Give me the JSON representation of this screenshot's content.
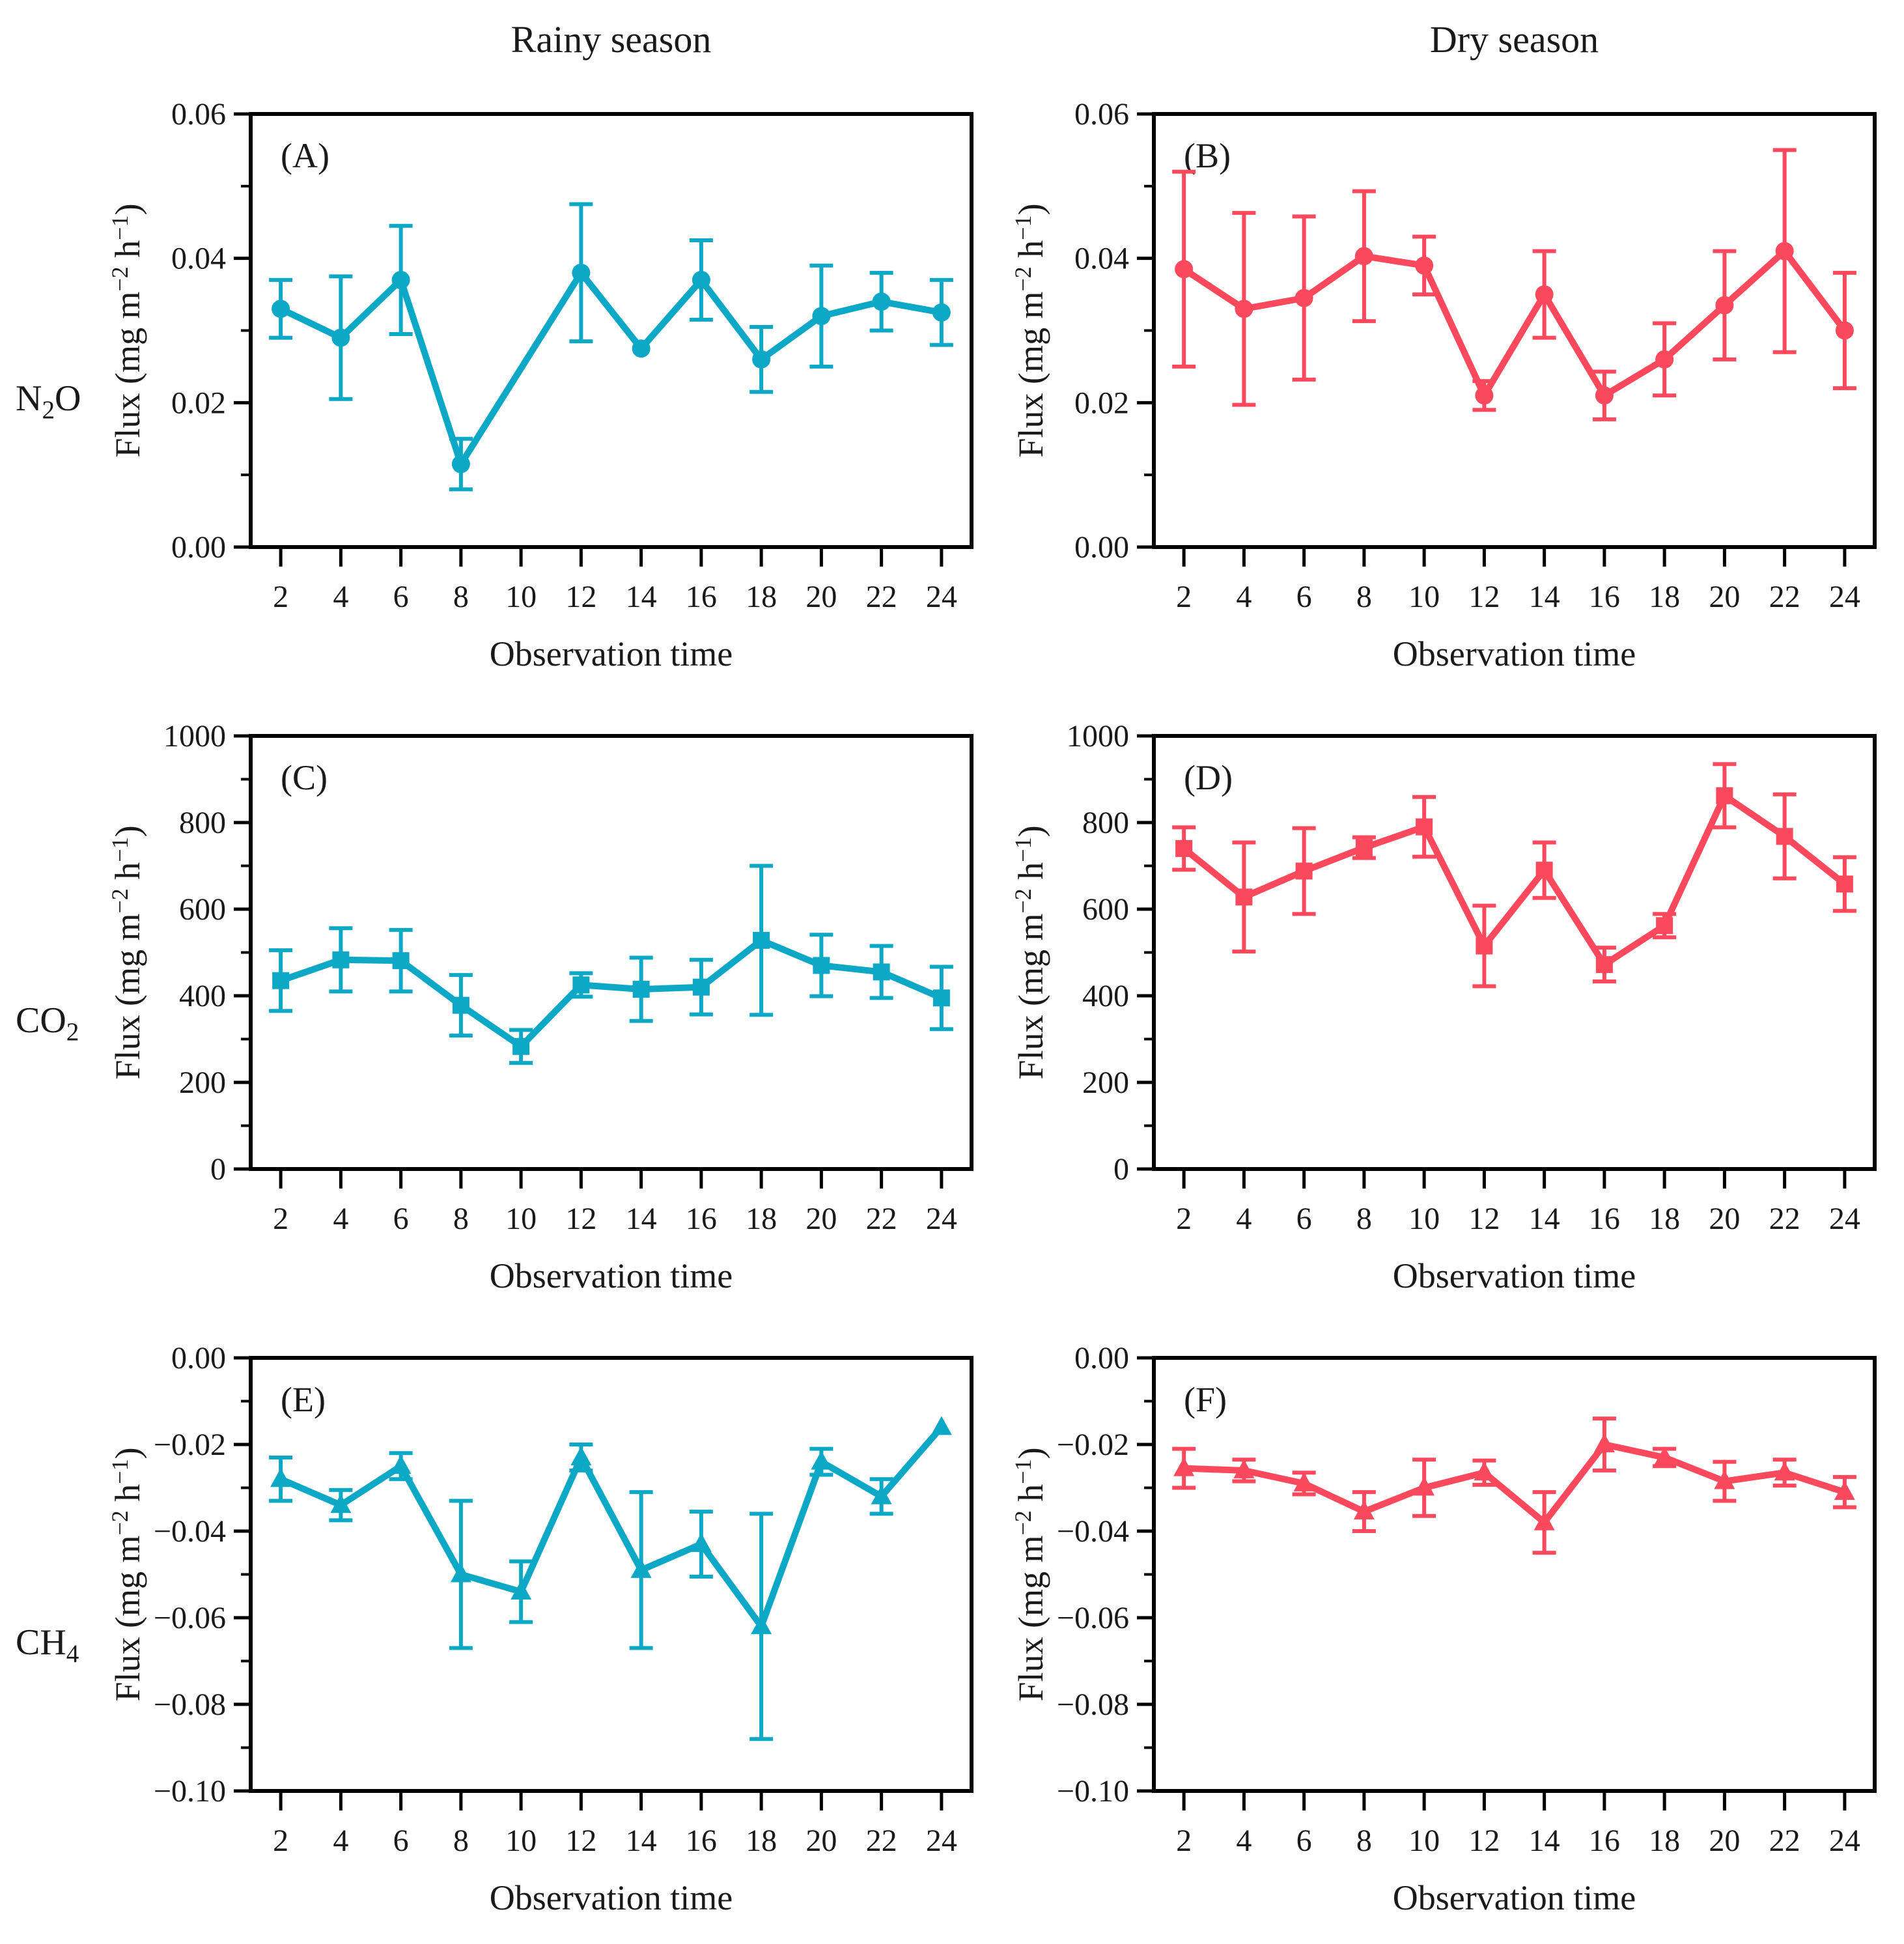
{
  "page": {
    "column_titles": [
      {
        "label": "Rainy season"
      },
      {
        "label": "Dry season"
      }
    ],
    "row_labels": [
      {
        "pre": "N",
        "sub": "2",
        "post": "O"
      },
      {
        "pre": "CO",
        "sub": "2",
        "post": ""
      },
      {
        "pre": "CH",
        "sub": "4",
        "post": ""
      }
    ]
  },
  "colors": {
    "rainy": "#0DA8C6",
    "dry": "#FA495C",
    "axis": "#000000",
    "text": "#1a1a1a"
  },
  "chart_data": [
    {
      "type": "line",
      "panel_label": "(A)",
      "gas": "N2O",
      "season": "Rainy season",
      "marker": "circle",
      "color": "#0DA8C6",
      "xlabel": "Observation time",
      "ylabel": "Flux (mg m^{−2} h^{−1})",
      "xlim": [
        1,
        25
      ],
      "xticks": [
        2,
        4,
        6,
        8,
        10,
        12,
        14,
        16,
        18,
        20,
        22,
        24
      ],
      "ylim": [
        0,
        0.06
      ],
      "yticks": [
        0,
        0.02,
        0.04,
        0.06
      ],
      "y_decimals": 2,
      "x": [
        2,
        4,
        6,
        8,
        12,
        14,
        16,
        18,
        20,
        22,
        24
      ],
      "y": [
        0.033,
        0.029,
        0.037,
        0.0115,
        0.038,
        0.0275,
        0.037,
        0.026,
        0.032,
        0.034,
        0.0325
      ],
      "err": [
        0.004,
        0.0085,
        0.0075,
        0.0035,
        0.0095,
        0,
        0.0055,
        0.0045,
        0.007,
        0.004,
        0.0045
      ]
    },
    {
      "type": "line",
      "panel_label": "(B)",
      "gas": "N2O",
      "season": "Dry season",
      "marker": "circle",
      "color": "#FA495C",
      "xlabel": "Observation time",
      "ylabel": "Flux (mg m^{−2} h^{−1})",
      "xlim": [
        1,
        25
      ],
      "xticks": [
        2,
        4,
        6,
        8,
        10,
        12,
        14,
        16,
        18,
        20,
        22,
        24
      ],
      "ylim": [
        0,
        0.06
      ],
      "yticks": [
        0,
        0.02,
        0.04,
        0.06
      ],
      "y_decimals": 2,
      "x": [
        2,
        4,
        6,
        8,
        10,
        12,
        14,
        16,
        18,
        20,
        22,
        24
      ],
      "y": [
        0.0385,
        0.033,
        0.0345,
        0.0403,
        0.039,
        0.021,
        0.035,
        0.021,
        0.026,
        0.0335,
        0.041,
        0.03
      ],
      "err": [
        0.0135,
        0.0133,
        0.0113,
        0.009,
        0.004,
        0.002,
        0.006,
        0.0033,
        0.005,
        0.0075,
        0.014,
        0.008
      ]
    },
    {
      "type": "line",
      "panel_label": "(C)",
      "gas": "CO2",
      "season": "Rainy season",
      "marker": "square",
      "color": "#0DA8C6",
      "xlabel": "Observation time",
      "ylabel": "Flux (mg m^{−2} h^{−1})",
      "xlim": [
        1,
        25
      ],
      "xticks": [
        2,
        4,
        6,
        8,
        10,
        12,
        14,
        16,
        18,
        20,
        22,
        24
      ],
      "ylim": [
        0,
        1000
      ],
      "yticks": [
        0,
        200,
        400,
        600,
        800,
        1000
      ],
      "y_decimals": 0,
      "x": [
        2,
        4,
        6,
        8,
        10,
        12,
        14,
        16,
        18,
        20,
        22,
        24
      ],
      "y": [
        435,
        483,
        481,
        378,
        283,
        425,
        415,
        420,
        528,
        470,
        455,
        395
      ],
      "err": [
        70,
        73,
        71,
        70,
        38,
        27,
        73,
        63,
        172,
        71,
        60,
        72
      ]
    },
    {
      "type": "line",
      "panel_label": "(D)",
      "gas": "CO2",
      "season": "Dry season",
      "marker": "square",
      "color": "#FA495C",
      "xlabel": "Observation time",
      "ylabel": "Flux (mg m^{−2} h^{−1})",
      "xlim": [
        1,
        25
      ],
      "xticks": [
        2,
        4,
        6,
        8,
        10,
        12,
        14,
        16,
        18,
        20,
        22,
        24
      ],
      "ylim": [
        0,
        1000
      ],
      "yticks": [
        0,
        200,
        400,
        600,
        800,
        1000
      ],
      "y_decimals": 0,
      "x": [
        2,
        4,
        6,
        8,
        10,
        12,
        14,
        16,
        18,
        20,
        22,
        24
      ],
      "y": [
        740,
        628,
        688,
        742,
        790,
        515,
        690,
        472,
        562,
        862,
        768,
        658
      ],
      "err": [
        49,
        126,
        99,
        24,
        69,
        93,
        64,
        39,
        27,
        73,
        97,
        62
      ]
    },
    {
      "type": "line",
      "panel_label": "(E)",
      "gas": "CH4",
      "season": "Rainy season",
      "marker": "triangle",
      "color": "#0DA8C6",
      "xlabel": "Observation time",
      "ylabel": "Flux (mg m^{−2} h^{−1})",
      "xlim": [
        1,
        25
      ],
      "xticks": [
        2,
        4,
        6,
        8,
        10,
        12,
        14,
        16,
        18,
        20,
        22,
        24
      ],
      "ylim": [
        -0.1,
        0
      ],
      "yticks": [
        -0.1,
        -0.08,
        -0.06,
        -0.04,
        -0.02,
        0
      ],
      "y_decimals": 2,
      "x": [
        2,
        4,
        6,
        8,
        10,
        12,
        14,
        16,
        18,
        20,
        22,
        24
      ],
      "y": [
        -0.028,
        -0.034,
        -0.025,
        -0.05,
        -0.054,
        -0.023,
        -0.049,
        -0.043,
        -0.062,
        -0.024,
        -0.032,
        -0.016
      ],
      "err": [
        0.005,
        0.0035,
        0.003,
        0.017,
        0.007,
        0.003,
        0.018,
        0.0075,
        0.026,
        0.003,
        0.004,
        0
      ]
    },
    {
      "type": "line",
      "panel_label": "(F)",
      "gas": "CH4",
      "season": "Dry season",
      "marker": "triangle",
      "color": "#FA495C",
      "xlabel": "Observation time",
      "ylabel": "Flux (mg m^{−2} h^{−1})",
      "xlim": [
        1,
        25
      ],
      "xticks": [
        2,
        4,
        6,
        8,
        10,
        12,
        14,
        16,
        18,
        20,
        22,
        24
      ],
      "ylim": [
        -0.1,
        0
      ],
      "yticks": [
        -0.1,
        -0.08,
        -0.06,
        -0.04,
        -0.02,
        0
      ],
      "y_decimals": 2,
      "x": [
        2,
        4,
        6,
        8,
        10,
        12,
        14,
        16,
        18,
        20,
        22,
        24
      ],
      "y": [
        -0.0255,
        -0.026,
        -0.029,
        -0.0355,
        -0.03,
        -0.0265,
        -0.038,
        -0.02,
        -0.023,
        -0.0285,
        -0.0265,
        -0.031
      ],
      "err": [
        0.0045,
        0.0025,
        0.0025,
        0.0045,
        0.0065,
        0.0028,
        0.007,
        0.006,
        0.002,
        0.0045,
        0.003,
        0.0035
      ]
    }
  ]
}
